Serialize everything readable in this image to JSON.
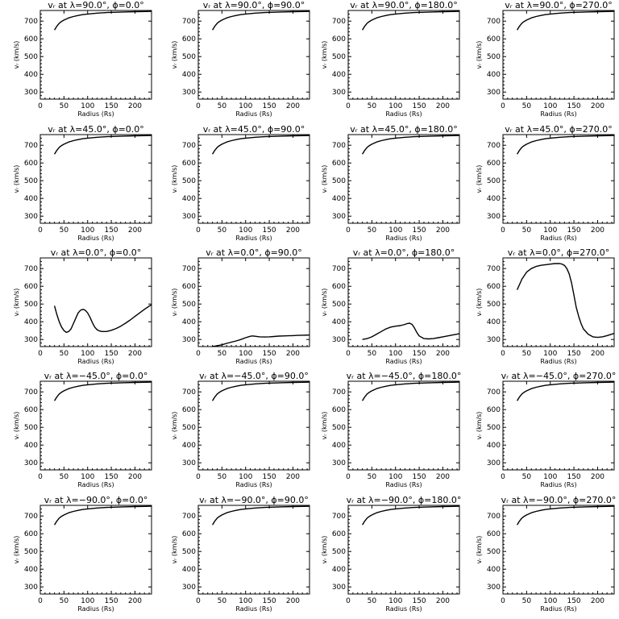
{
  "figure": {
    "rows": 5,
    "cols": 4,
    "xlabel": "Radius (Rs)",
    "ylabel": "vᵣ (km/s)",
    "xticks": [
      0,
      50,
      100,
      150,
      200
    ],
    "yticks": [
      300,
      400,
      500,
      600,
      700
    ],
    "xlim": [
      0,
      235
    ],
    "ylim": [
      260,
      760
    ],
    "line_color": "#000000",
    "axis_color": "#000000"
  },
  "chart_data": [
    {
      "type": "line",
      "title": "vᵣ at λ=90.0°, ϕ=0.0°",
      "x": [
        30,
        35,
        40,
        45,
        50,
        60,
        70,
        80,
        90,
        100,
        120,
        140,
        160,
        180,
        200,
        220,
        235
      ],
      "y": [
        650,
        672,
        688,
        698,
        706,
        718,
        726,
        732,
        737,
        740,
        745,
        748,
        750,
        752,
        753,
        754,
        755
      ]
    },
    {
      "type": "line",
      "title": "vᵣ at λ=90.0°, ϕ=90.0°",
      "x": [
        30,
        35,
        40,
        45,
        50,
        60,
        70,
        80,
        90,
        100,
        120,
        140,
        160,
        180,
        200,
        220,
        235
      ],
      "y": [
        650,
        672,
        688,
        698,
        706,
        718,
        726,
        732,
        737,
        740,
        745,
        748,
        750,
        752,
        753,
        754,
        755
      ]
    },
    {
      "type": "line",
      "title": "vᵣ at λ=90.0°, ϕ=180.0°",
      "x": [
        30,
        35,
        40,
        45,
        50,
        60,
        70,
        80,
        90,
        100,
        120,
        140,
        160,
        180,
        200,
        220,
        235
      ],
      "y": [
        650,
        672,
        688,
        698,
        706,
        718,
        726,
        732,
        737,
        740,
        745,
        748,
        750,
        752,
        753,
        754,
        755
      ]
    },
    {
      "type": "line",
      "title": "vᵣ at λ=90.0°, ϕ=270.0°",
      "x": [
        30,
        35,
        40,
        45,
        50,
        60,
        70,
        80,
        90,
        100,
        120,
        140,
        160,
        180,
        200,
        220,
        235
      ],
      "y": [
        650,
        672,
        688,
        698,
        706,
        718,
        726,
        732,
        737,
        740,
        745,
        748,
        750,
        752,
        753,
        754,
        755
      ]
    },
    {
      "type": "line",
      "title": "vᵣ at λ=45.0°, ϕ=0.0°",
      "x": [
        30,
        35,
        40,
        45,
        50,
        60,
        70,
        80,
        90,
        100,
        120,
        140,
        160,
        180,
        200,
        220,
        235
      ],
      "y": [
        650,
        672,
        688,
        698,
        706,
        718,
        726,
        732,
        737,
        740,
        745,
        748,
        750,
        752,
        753,
        754,
        755
      ]
    },
    {
      "type": "line",
      "title": "vᵣ at λ=45.0°, ϕ=90.0°",
      "x": [
        30,
        35,
        40,
        45,
        50,
        60,
        70,
        80,
        90,
        100,
        120,
        140,
        160,
        180,
        200,
        220,
        235
      ],
      "y": [
        650,
        672,
        688,
        698,
        706,
        718,
        726,
        732,
        737,
        740,
        745,
        748,
        750,
        752,
        753,
        754,
        755
      ]
    },
    {
      "type": "line",
      "title": "vᵣ at λ=45.0°, ϕ=180.0°",
      "x": [
        30,
        35,
        40,
        45,
        50,
        60,
        70,
        80,
        90,
        100,
        120,
        140,
        160,
        180,
        200,
        220,
        235
      ],
      "y": [
        650,
        672,
        688,
        698,
        706,
        718,
        726,
        732,
        737,
        740,
        745,
        748,
        750,
        752,
        753,
        754,
        755
      ]
    },
    {
      "type": "line",
      "title": "vᵣ at λ=45.0°, ϕ=270.0°",
      "x": [
        30,
        35,
        40,
        45,
        50,
        60,
        70,
        80,
        90,
        100,
        120,
        140,
        160,
        180,
        200,
        220,
        235
      ],
      "y": [
        650,
        672,
        688,
        698,
        706,
        718,
        726,
        732,
        737,
        740,
        745,
        748,
        750,
        752,
        753,
        754,
        755
      ]
    },
    {
      "type": "line",
      "title": "vᵣ at λ=0.0°, ϕ=0.0°",
      "x": [
        30,
        35,
        40,
        45,
        50,
        55,
        60,
        65,
        70,
        75,
        80,
        85,
        90,
        95,
        100,
        105,
        110,
        115,
        120,
        125,
        130,
        140,
        150,
        160,
        170,
        180,
        190,
        200,
        210,
        220,
        230,
        235
      ],
      "y": [
        490,
        440,
        400,
        370,
        350,
        340,
        345,
        360,
        390,
        420,
        450,
        465,
        470,
        465,
        450,
        425,
        395,
        370,
        355,
        348,
        345,
        345,
        352,
        362,
        375,
        392,
        410,
        430,
        450,
        470,
        488,
        495
      ]
    },
    {
      "type": "line",
      "title": "vᵣ at λ=0.0°, ϕ=90.0°",
      "x": [
        30,
        40,
        50,
        60,
        70,
        80,
        90,
        100,
        110,
        115,
        120,
        130,
        140,
        150,
        160,
        170,
        180,
        190,
        200,
        210,
        220,
        235
      ],
      "y": [
        260,
        265,
        270,
        278,
        285,
        292,
        300,
        310,
        318,
        320,
        318,
        315,
        314,
        315,
        317,
        319,
        320,
        321,
        322,
        323,
        324,
        325
      ]
    },
    {
      "type": "line",
      "title": "vᵣ at λ=0.0°, ϕ=180.0°",
      "x": [
        30,
        40,
        50,
        60,
        70,
        80,
        90,
        100,
        110,
        120,
        125,
        130,
        135,
        140,
        145,
        150,
        160,
        170,
        180,
        190,
        200,
        210,
        220,
        230,
        235
      ],
      "y": [
        300,
        305,
        315,
        330,
        345,
        360,
        370,
        375,
        378,
        385,
        390,
        392,
        385,
        365,
        340,
        320,
        305,
        303,
        305,
        310,
        315,
        320,
        325,
        330,
        333
      ]
    },
    {
      "type": "line",
      "title": "vᵣ at λ=0.0°, ϕ=270.0°",
      "x": [
        30,
        35,
        40,
        50,
        60,
        70,
        80,
        90,
        100,
        110,
        120,
        125,
        130,
        135,
        140,
        145,
        150,
        155,
        160,
        165,
        170,
        180,
        190,
        200,
        210,
        220,
        230,
        235
      ],
      "y": [
        580,
        610,
        640,
        680,
        700,
        712,
        718,
        722,
        725,
        728,
        728,
        725,
        718,
        700,
        670,
        620,
        550,
        480,
        430,
        390,
        360,
        330,
        315,
        312,
        315,
        322,
        330,
        334
      ]
    },
    {
      "type": "line",
      "title": "vᵣ at λ=−45.0°, ϕ=0.0°",
      "x": [
        30,
        35,
        40,
        45,
        50,
        60,
        70,
        80,
        90,
        100,
        120,
        140,
        160,
        180,
        200,
        220,
        235
      ],
      "y": [
        650,
        672,
        688,
        698,
        706,
        718,
        726,
        732,
        737,
        740,
        745,
        748,
        750,
        752,
        753,
        754,
        755
      ]
    },
    {
      "type": "line",
      "title": "vᵣ at λ=−45.0°, ϕ=90.0°",
      "x": [
        30,
        35,
        40,
        45,
        50,
        60,
        70,
        80,
        90,
        100,
        120,
        140,
        160,
        180,
        200,
        220,
        235
      ],
      "y": [
        650,
        672,
        688,
        698,
        706,
        718,
        726,
        732,
        737,
        740,
        745,
        748,
        750,
        752,
        753,
        754,
        755
      ]
    },
    {
      "type": "line",
      "title": "vᵣ at λ=−45.0°, ϕ=180.0°",
      "x": [
        30,
        35,
        40,
        45,
        50,
        60,
        70,
        80,
        90,
        100,
        120,
        140,
        160,
        180,
        200,
        220,
        235
      ],
      "y": [
        650,
        672,
        688,
        698,
        706,
        718,
        726,
        732,
        737,
        740,
        745,
        748,
        750,
        752,
        753,
        754,
        755
      ]
    },
    {
      "type": "line",
      "title": "vᵣ at λ=−45.0°, ϕ=270.0°",
      "x": [
        30,
        35,
        40,
        45,
        50,
        60,
        70,
        80,
        90,
        100,
        120,
        140,
        160,
        180,
        200,
        220,
        235
      ],
      "y": [
        650,
        672,
        688,
        698,
        706,
        718,
        726,
        732,
        737,
        740,
        745,
        748,
        750,
        752,
        753,
        754,
        755
      ]
    },
    {
      "type": "line",
      "title": "vᵣ at λ=−90.0°, ϕ=0.0°",
      "x": [
        30,
        35,
        40,
        45,
        50,
        60,
        70,
        80,
        90,
        100,
        120,
        140,
        160,
        180,
        200,
        220,
        235
      ],
      "y": [
        650,
        672,
        688,
        698,
        706,
        718,
        726,
        732,
        737,
        740,
        745,
        748,
        750,
        752,
        753,
        754,
        755
      ]
    },
    {
      "type": "line",
      "title": "vᵣ at λ=−90.0°, ϕ=90.0°",
      "x": [
        30,
        35,
        40,
        45,
        50,
        60,
        70,
        80,
        90,
        100,
        120,
        140,
        160,
        180,
        200,
        220,
        235
      ],
      "y": [
        650,
        672,
        688,
        698,
        706,
        718,
        726,
        732,
        737,
        740,
        745,
        748,
        750,
        752,
        753,
        754,
        755
      ]
    },
    {
      "type": "line",
      "title": "vᵣ at λ=−90.0°, ϕ=180.0°",
      "x": [
        30,
        35,
        40,
        45,
        50,
        60,
        70,
        80,
        90,
        100,
        120,
        140,
        160,
        180,
        200,
        220,
        235
      ],
      "y": [
        650,
        672,
        688,
        698,
        706,
        718,
        726,
        732,
        737,
        740,
        745,
        748,
        750,
        752,
        753,
        754,
        755
      ]
    },
    {
      "type": "line",
      "title": "vᵣ at λ=−90.0°, ϕ=270.0°",
      "x": [
        30,
        35,
        40,
        45,
        50,
        60,
        70,
        80,
        90,
        100,
        120,
        140,
        160,
        180,
        200,
        220,
        235
      ],
      "y": [
        650,
        672,
        688,
        698,
        706,
        718,
        726,
        732,
        737,
        740,
        745,
        748,
        750,
        752,
        753,
        754,
        755
      ]
    }
  ]
}
